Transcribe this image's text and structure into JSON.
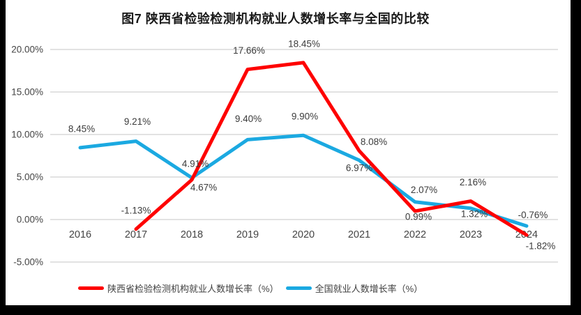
{
  "chart_data": {
    "type": "line",
    "title": "图7 陕西省检验检测机构就业人数增长率与全国的比较",
    "categories": [
      "2016",
      "2017",
      "2018",
      "2019",
      "2020",
      "2021",
      "2022",
      "2023",
      "2024"
    ],
    "xlabel": "",
    "ylabel": "",
    "ylim": [
      -5,
      20
    ],
    "grid": true,
    "legend_position": "bottom",
    "y_ticks": {
      "values": [
        20,
        15,
        10,
        5,
        0,
        -5
      ],
      "labels": [
        "20.00%",
        "15.00%",
        "10.00%",
        "5.00%",
        "0.00%",
        "-5.00%"
      ]
    },
    "series": [
      {
        "name": "陕西省检验检测机构就业人数增长率（%）",
        "color": "#FE0000",
        "values": [
          null,
          -1.13,
          4.67,
          17.66,
          18.45,
          8.08,
          0.99,
          2.16,
          -1.82
        ],
        "data_labels": [
          "",
          "-1.13%",
          "4.67%",
          "17.66%",
          "18.45%",
          "8.08%",
          "0.99%",
          "2.16%",
          "-1.82%"
        ],
        "label_offsets": [
          null,
          {
            "dx": 0,
            "dy": -27
          },
          {
            "dx": 17,
            "dy": 11
          },
          {
            "dx": 2,
            "dy": -27
          },
          {
            "dx": 1,
            "dy": -27
          },
          {
            "dx": 21,
            "dy": -13
          },
          {
            "dx": 5,
            "dy": 8
          },
          {
            "dx": 3,
            "dy": -27
          },
          {
            "dx": 20,
            "dy": 16
          }
        ]
      },
      {
        "name": "全国就业人数增长率（%）",
        "color": "#1BA9E1",
        "values": [
          8.45,
          9.21,
          4.91,
          9.4,
          9.9,
          6.97,
          2.07,
          1.32,
          -0.76
        ],
        "data_labels": [
          "8.45%",
          "9.21%",
          "4.91%",
          "9.40%",
          "9.90%",
          "6.97%",
          "2.07%",
          "1.32%",
          "-0.76%"
        ],
        "label_offsets": [
          {
            "dx": 2,
            "dy": -27
          },
          {
            "dx": 2,
            "dy": -28
          },
          {
            "dx": 5,
            "dy": -20
          },
          {
            "dx": 1,
            "dy": -30
          },
          {
            "dx": 2,
            "dy": -27
          },
          {
            "dx": 0,
            "dy": 11
          },
          {
            "dx": 13,
            "dy": -17
          },
          {
            "dx": 5,
            "dy": 8
          },
          {
            "dx": 9,
            "dy": -16
          }
        ]
      }
    ],
    "colors": {
      "grid": "#D9D9D9",
      "axis_text": "#444444",
      "data_label_text": "#3B3B3B",
      "title_text": "#1A1A1A",
      "frame": "#000000",
      "background": "#FFFFFF"
    }
  }
}
